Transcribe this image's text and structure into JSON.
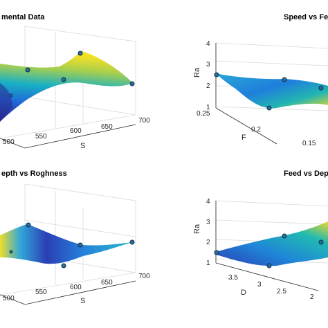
{
  "chart_data": [
    {
      "type": "surface",
      "title": "mental Data",
      "xlabel": "S",
      "x_ticks": [
        "500",
        "550",
        "600",
        "650",
        "700"
      ],
      "points": [
        {
          "S": 500,
          "Ra": 2.6
        },
        {
          "S": 560,
          "Ra": 3.1
        },
        {
          "S": 620,
          "Ra": 2.7
        },
        {
          "S": 650,
          "Ra": 3.8
        },
        {
          "S": 700,
          "Ra": 2.4
        }
      ]
    },
    {
      "type": "surface",
      "title": "Speed vs Fe",
      "ylabel": "Ra",
      "xlabel": "F",
      "z_ticks": [
        "1",
        "2",
        "3",
        "4"
      ],
      "x_ticks": [
        "0.25",
        "0.2",
        "0.15"
      ],
      "points": [
        {
          "F": 0.25,
          "Ra": 2.5
        },
        {
          "F": 0.21,
          "Ra": 1.1
        },
        {
          "F": 0.19,
          "Ra": 2.3
        },
        {
          "F": 0.15,
          "Ra": 2.0
        }
      ]
    },
    {
      "type": "surface",
      "title": "epth vs Roghness",
      "xlabel": "S",
      "x_ticks": [
        "500",
        "550",
        "600",
        "650",
        "700"
      ],
      "points": [
        {
          "S": 500,
          "Ra": 2.6
        },
        {
          "S": 560,
          "Ra": 2.1
        },
        {
          "S": 600,
          "Ra": 2.8
        },
        {
          "S": 650,
          "Ra": 2.7
        },
        {
          "S": 700,
          "Ra": 2.9
        }
      ]
    },
    {
      "type": "surface",
      "title": "Feed vs Dep",
      "ylabel": "Ra",
      "xlabel": "D",
      "z_ticks": [
        "1",
        "2",
        "3",
        "4"
      ],
      "x_ticks": [
        "3.5",
        "3",
        "2.5",
        "2"
      ],
      "points": [
        {
          "D": 3.8,
          "Ra": 1.5
        },
        {
          "D": 3.2,
          "Ra": 1.1
        },
        {
          "D": 2.8,
          "Ra": 2.3
        },
        {
          "D": 2.2,
          "Ra": 2.0
        }
      ]
    }
  ]
}
